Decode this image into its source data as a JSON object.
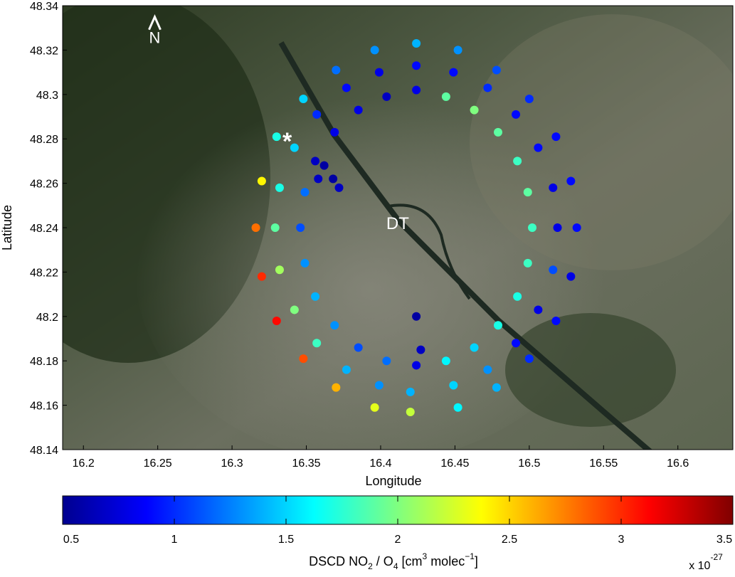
{
  "chart_data": {
    "type": "scatter",
    "title": "",
    "xlabel": "Longitude",
    "ylabel": "Latitude",
    "xlim": [
      16.186,
      16.637
    ],
    "ylim": [
      48.14,
      48.34
    ],
    "xticks": [
      "16.2",
      "16.25",
      "16.3",
      "16.35",
      "16.4",
      "16.45",
      "16.5",
      "16.55",
      "16.6"
    ],
    "yticks": [
      "48.14",
      "48.16",
      "48.18",
      "48.2",
      "48.22",
      "48.24",
      "48.26",
      "48.28",
      "48.3",
      "48.32",
      "48.34"
    ],
    "grid": false,
    "background": "satellite map",
    "annotations": [
      {
        "text": "N",
        "lon": 16.248,
        "lat": 48.326,
        "kind": "north-arrow"
      },
      {
        "text": "*",
        "lon": 16.34,
        "lat": 48.281,
        "kind": "marker"
      },
      {
        "text": "DT",
        "lon": 16.41,
        "lat": 48.242,
        "kind": "label"
      }
    ],
    "colorbar": {
      "label_main": "DSCD NO",
      "label_sub1": "2",
      "label_mid": " / O",
      "label_sub2": "4",
      "label_unit_a": " [cm",
      "label_sup1": "3",
      "label_unit_b": "  molec",
      "label_sup2": "−1",
      "label_end": "]",
      "range": [
        0.5,
        3.5
      ],
      "ticks": [
        "0.5",
        "1",
        "1.5",
        "2",
        "2.5",
        "3",
        "3.5"
      ],
      "multiplier_base": "x 10",
      "multiplier_exp": "-27",
      "colormap": "jet"
    },
    "points": [
      [
        16.532,
        48.24,
        0.9
      ],
      [
        16.528,
        48.261,
        0.9
      ],
      [
        16.518,
        48.281,
        0.9
      ],
      [
        16.5,
        48.298,
        1.0
      ],
      [
        16.478,
        48.311,
        1.1
      ],
      [
        16.452,
        48.32,
        1.3
      ],
      [
        16.424,
        48.323,
        1.4
      ],
      [
        16.396,
        48.32,
        1.3
      ],
      [
        16.37,
        48.311,
        1.2
      ],
      [
        16.348,
        48.298,
        1.5
      ],
      [
        16.33,
        48.281,
        1.7
      ],
      [
        16.32,
        48.261,
        2.4
      ],
      [
        16.316,
        48.24,
        2.8
      ],
      [
        16.32,
        48.218,
        3.0
      ],
      [
        16.33,
        48.198,
        3.1
      ],
      [
        16.348,
        48.181,
        2.9
      ],
      [
        16.37,
        48.168,
        2.6
      ],
      [
        16.396,
        48.159,
        2.3
      ],
      [
        16.42,
        48.157,
        2.2
      ],
      [
        16.452,
        48.159,
        1.6
      ],
      [
        16.478,
        48.168,
        1.4
      ],
      [
        16.5,
        48.181,
        1.0
      ],
      [
        16.518,
        48.198,
        0.9
      ],
      [
        16.528,
        48.218,
        0.8
      ],
      [
        16.519,
        48.24,
        0.8
      ],
      [
        16.516,
        48.258,
        0.8
      ],
      [
        16.506,
        48.276,
        0.9
      ],
      [
        16.491,
        48.291,
        0.9
      ],
      [
        16.472,
        48.303,
        1.0
      ],
      [
        16.449,
        48.31,
        0.9
      ],
      [
        16.424,
        48.313,
        0.9
      ],
      [
        16.399,
        48.31,
        0.8
      ],
      [
        16.377,
        48.303,
        0.9
      ],
      [
        16.357,
        48.291,
        1.0
      ],
      [
        16.342,
        48.276,
        1.5
      ],
      [
        16.332,
        48.258,
        1.7
      ],
      [
        16.329,
        48.24,
        1.9
      ],
      [
        16.332,
        48.221,
        2.1
      ],
      [
        16.342,
        48.203,
        2.0
      ],
      [
        16.357,
        48.188,
        1.8
      ],
      [
        16.377,
        48.176,
        1.4
      ],
      [
        16.399,
        48.169,
        1.3
      ],
      [
        16.42,
        48.166,
        1.4
      ],
      [
        16.449,
        48.169,
        1.5
      ],
      [
        16.472,
        48.176,
        1.3
      ],
      [
        16.491,
        48.188,
        0.9
      ],
      [
        16.506,
        48.203,
        0.8
      ],
      [
        16.516,
        48.221,
        1.1
      ],
      [
        16.502,
        48.24,
        1.8
      ],
      [
        16.499,
        48.256,
        1.9
      ],
      [
        16.492,
        48.27,
        1.8
      ],
      [
        16.479,
        48.283,
        1.9
      ],
      [
        16.463,
        48.293,
        2.0
      ],
      [
        16.444,
        48.299,
        1.9
      ],
      [
        16.424,
        48.302,
        0.8
      ],
      [
        16.404,
        48.299,
        0.7
      ],
      [
        16.385,
        48.293,
        0.8
      ],
      [
        16.369,
        48.283,
        0.8
      ],
      [
        16.356,
        48.27,
        0.7
      ],
      [
        16.349,
        48.256,
        1.2
      ],
      [
        16.346,
        48.24,
        1.1
      ],
      [
        16.349,
        48.224,
        1.3
      ],
      [
        16.356,
        48.209,
        1.4
      ],
      [
        16.369,
        48.196,
        1.3
      ],
      [
        16.385,
        48.186,
        1.1
      ],
      [
        16.404,
        48.18,
        1.2
      ],
      [
        16.424,
        48.178,
        0.8
      ],
      [
        16.444,
        48.18,
        1.6
      ],
      [
        16.463,
        48.186,
        1.5
      ],
      [
        16.479,
        48.196,
        1.7
      ],
      [
        16.492,
        48.209,
        1.7
      ],
      [
        16.499,
        48.224,
        1.8
      ],
      [
        16.362,
        48.268,
        0.6
      ],
      [
        16.368,
        48.262,
        0.6
      ],
      [
        16.372,
        48.258,
        0.7
      ],
      [
        16.358,
        48.262,
        0.7
      ],
      [
        16.424,
        48.2,
        0.6
      ],
      [
        16.427,
        48.185,
        0.7
      ]
    ]
  }
}
